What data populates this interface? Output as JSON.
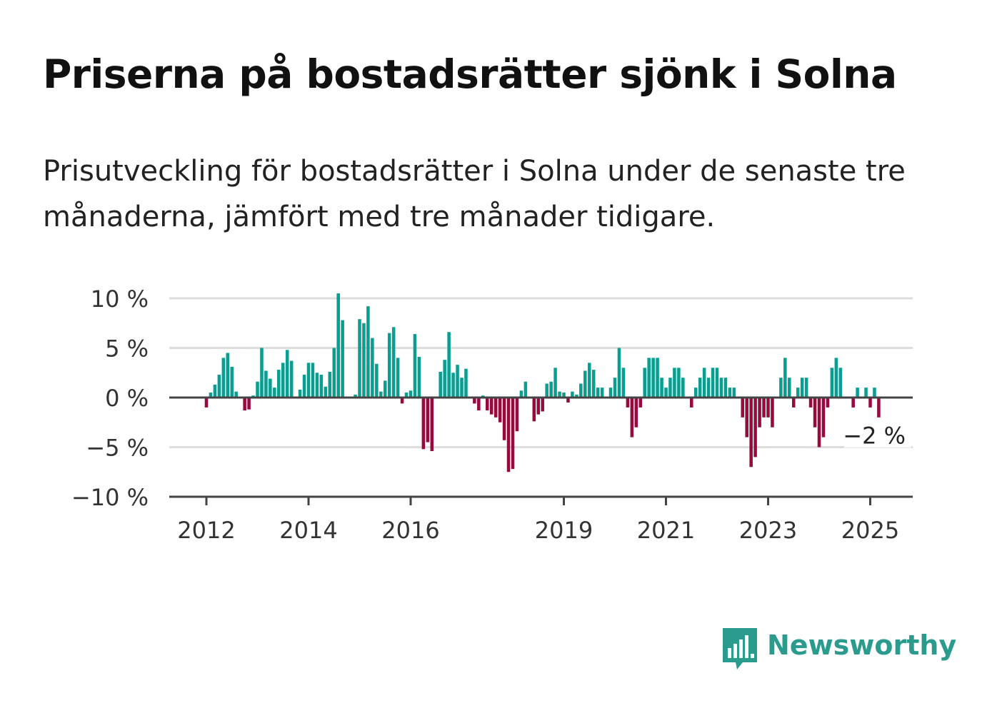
{
  "header": {
    "title": "Priserna på bostadsrätter sjönk i Solna",
    "subtitle": "Prisutveckling för bostadsrätter i Solna under de senaste tre månaderna, jämfört med tre månader tidigare."
  },
  "branding": {
    "name": "Newsworthy"
  },
  "colors": {
    "positive": "#0a9e91",
    "negative": "#960a3e",
    "grid": "#dddddd",
    "axis": "#444444",
    "brand": "#2a9b8c"
  },
  "chart_data": {
    "type": "bar",
    "x_start": "2012-01",
    "frequency": "monthly",
    "ylim": [
      -10,
      10
    ],
    "yticks": [
      {
        "value": 10,
        "label": "10 %"
      },
      {
        "value": 5,
        "label": "5 %"
      },
      {
        "value": 0,
        "label": "0 %"
      },
      {
        "value": -5,
        "label": "−5 %"
      },
      {
        "value": -10,
        "label": "−10 %"
      }
    ],
    "xticks": [
      {
        "value": 2012,
        "label": "2012"
      },
      {
        "value": 2014,
        "label": "2014"
      },
      {
        "value": 2016,
        "label": "2016"
      },
      {
        "value": 2019,
        "label": "2019"
      },
      {
        "value": 2021,
        "label": "2021"
      },
      {
        "value": 2023,
        "label": "2023"
      },
      {
        "value": 2025,
        "label": "2025"
      }
    ],
    "annotation": {
      "label": "−2 %",
      "value": -2
    },
    "grid": true,
    "legend": "none",
    "values": [
      -1,
      0.5,
      1.3,
      2.3,
      4.0,
      4.5,
      3.1,
      0.6,
      0.1,
      -1.3,
      -1.2,
      0.2,
      1.6,
      5.0,
      2.7,
      1.9,
      1.0,
      2.8,
      3.5,
      4.8,
      3.7,
      0,
      0.8,
      2.3,
      3.5,
      3.5,
      2.5,
      2.3,
      1.1,
      2.6,
      5.0,
      10.5,
      7.8,
      0,
      0,
      0.3,
      7.9,
      7.5,
      9.2,
      6.0,
      3.4,
      0.6,
      1.7,
      6.5,
      7.1,
      4.0,
      -0.6,
      0.5,
      0.7,
      6.4,
      4.1,
      -5.2,
      -4.5,
      -5.4,
      0,
      2.6,
      3.8,
      6.6,
      2.5,
      3.3,
      2.0,
      2.9,
      0,
      -0.6,
      -1.3,
      0.2,
      -1.3,
      -1.7,
      -2.0,
      -2.5,
      -4.3,
      -7.5,
      -7.2,
      -3.4,
      0.7,
      1.6,
      0,
      -2.4,
      -1.7,
      -1.4,
      1.4,
      1.6,
      3.0,
      0.6,
      0.5,
      -0.5,
      0.6,
      0.3,
      1.4,
      2.7,
      3.5,
      2.8,
      1.0,
      1.0,
      0,
      1.0,
      2.0,
      5.0,
      3.0,
      -1.0,
      -4.0,
      -3.0,
      -1.0,
      3.0,
      4.0,
      4.0,
      4.0,
      2.0,
      1.0,
      2.0,
      3.0,
      3.0,
      2.0,
      0,
      -1.0,
      1.0,
      2.0,
      3.0,
      2.0,
      3.0,
      3.0,
      2.0,
      2.0,
      1.0,
      1.0,
      0,
      -2.0,
      -4.0,
      -7.0,
      -6.0,
      -3.0,
      -2.0,
      -2.0,
      -3.0,
      0,
      2.0,
      4.0,
      2.0,
      -1.0,
      1.0,
      2.0,
      2.0,
      -1.0,
      -3.0,
      -5.0,
      -4.0,
      -1.0,
      3.0,
      4.0,
      3.0,
      0,
      0,
      -1.0,
      1.0,
      0,
      1.0,
      -1.0,
      1.0,
      -2.0
    ]
  }
}
